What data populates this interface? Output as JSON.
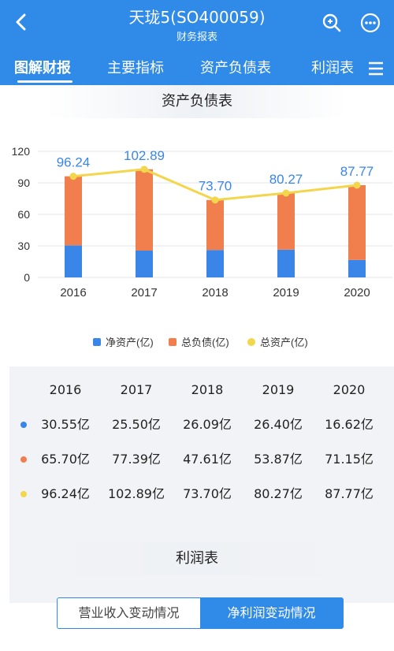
{
  "header": {
    "title": "天珑5(SO400059)",
    "subtitle": "财务报表",
    "tabs": [
      {
        "label": "图解财报",
        "active": true
      },
      {
        "label": "主要指标",
        "active": false
      },
      {
        "label": "资产负债表",
        "active": false
      },
      {
        "label": "利润表",
        "active": false
      }
    ],
    "icons": {
      "back": "chevron-left-icon",
      "search": "zoom-search-icon",
      "menu": "menu-icon"
    }
  },
  "balance": {
    "title": "资产负债表",
    "legend": [
      "净资产(亿)",
      "总负债(亿)",
      "总资产(亿)"
    ]
  },
  "chart_data": {
    "type": "bar",
    "categories": [
      "2016",
      "2017",
      "2018",
      "2019",
      "2020"
    ],
    "stacked": true,
    "series": [
      {
        "name": "净资产(亿)",
        "type": "bar",
        "color": "#3a86e8",
        "values": [
          30.55,
          25.5,
          26.09,
          26.4,
          16.62
        ]
      },
      {
        "name": "总负债(亿)",
        "type": "bar",
        "color": "#f07f4d",
        "values": [
          65.7,
          77.39,
          47.61,
          53.87,
          71.15
        ]
      },
      {
        "name": "总资产(亿)",
        "type": "line",
        "color": "#f2d64b",
        "values": [
          96.24,
          102.89,
          73.7,
          80.27,
          87.77
        ]
      }
    ],
    "data_labels": [
      "96.24",
      "102.89",
      "73.70",
      "80.27",
      "87.77"
    ],
    "yticks": [
      "0",
      "30",
      "60",
      "90",
      "120"
    ],
    "ylim": [
      0,
      120
    ],
    "grid": true,
    "legend_position": "bottom"
  },
  "table": {
    "years": [
      "2016",
      "2017",
      "2018",
      "2019",
      "2020"
    ],
    "rows": [
      {
        "color": "#3a86e8",
        "values": [
          "30.55亿",
          "25.50亿",
          "26.09亿",
          "26.40亿",
          "16.62亿"
        ]
      },
      {
        "color": "#f07f4d",
        "values": [
          "65.70亿",
          "77.39亿",
          "47.61亿",
          "53.87亿",
          "71.15亿"
        ]
      },
      {
        "color": "#f2d64b",
        "values": [
          "96.24亿",
          "102.89亿",
          "73.70亿",
          "80.27亿",
          "87.77亿"
        ]
      }
    ]
  },
  "income": {
    "title": "利润表",
    "toggle": [
      {
        "label": "营业收入变动情况",
        "active": false
      },
      {
        "label": "净利润变动情况",
        "active": true
      }
    ]
  },
  "colors": {
    "accent": "#2f8ae8"
  }
}
